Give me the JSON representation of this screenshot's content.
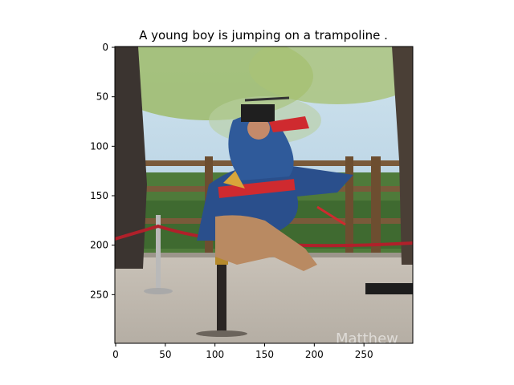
{
  "chart_data": {
    "type": "image",
    "title": "A young boy is jumping on a trampoline .",
    "image_size": [
      300,
      300
    ],
    "xlim": [
      0,
      300
    ],
    "ylim": [
      300,
      0
    ],
    "x_ticks": [
      0,
      50,
      100,
      150,
      200,
      250
    ],
    "y_ticks": [
      0,
      50,
      100,
      150,
      200,
      250
    ],
    "grid": false,
    "image_content": {
      "description_hidden": true,
      "watermark_text": "Matthew"
    }
  }
}
